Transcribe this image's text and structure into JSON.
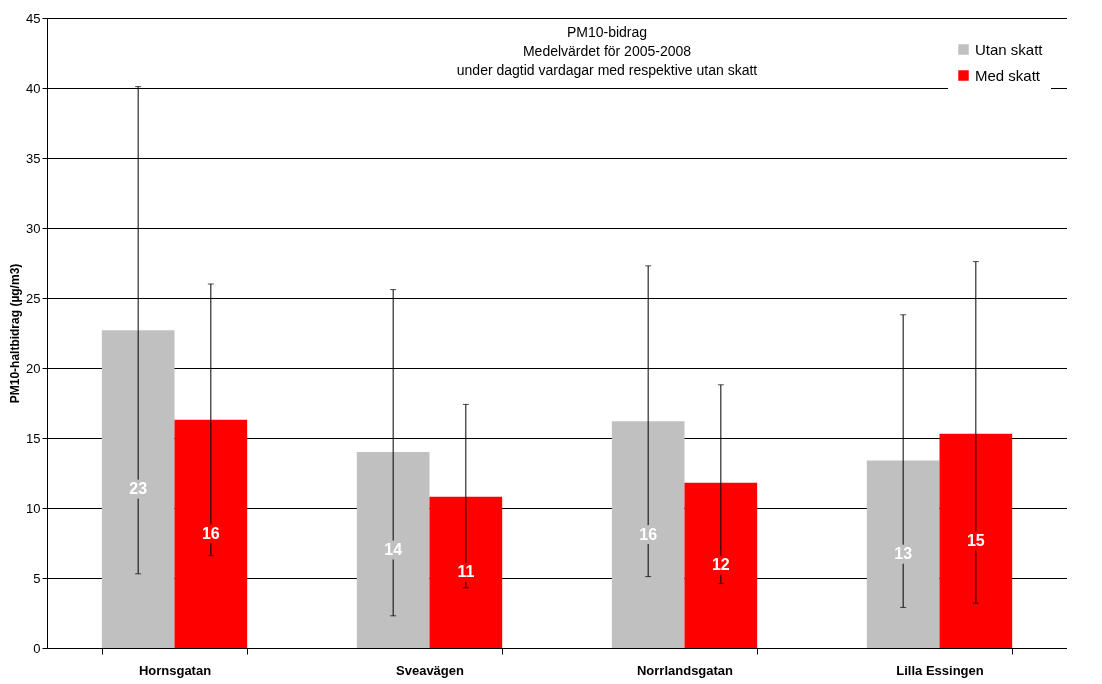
{
  "chart_data": {
    "type": "bar",
    "title": "PM10-bidrag",
    "subtitle": "Medelvärdet för 2005-2008\nunder dagtid vardagar med respektive utan skatt",
    "ylabel": "PM10-haltbidrag (µg/m3)",
    "categories": [
      "Hornsgatan",
      "Sveavägen",
      "Norrlandsgatan",
      "Lilla Essingen"
    ],
    "series": [
      {
        "name": "Utan skatt",
        "color": "#c0c0c0",
        "values": [
          22.7,
          14.0,
          16.2,
          13.4
        ],
        "value_labels": [
          "23",
          "14",
          "16",
          "13"
        ],
        "errors": [
          [
            5.3,
            40.1
          ],
          [
            2.3,
            25.6
          ],
          [
            5.1,
            27.3
          ],
          [
            2.9,
            23.8
          ]
        ]
      },
      {
        "name": "Med skatt",
        "color": "#ff0000",
        "values": [
          16.3,
          10.8,
          11.8,
          15.3
        ],
        "value_labels": [
          "16",
          "11",
          "12",
          "15"
        ],
        "errors": [
          [
            6.6,
            26.0
          ],
          [
            4.3,
            17.4
          ],
          [
            4.6,
            18.8
          ],
          [
            3.2,
            27.6
          ]
        ]
      }
    ],
    "ylim": [
      0,
      45
    ],
    "yticks": [
      0,
      5,
      10,
      15,
      20,
      25,
      30,
      35,
      40,
      45
    ],
    "grid": "y",
    "legend": "top right"
  }
}
